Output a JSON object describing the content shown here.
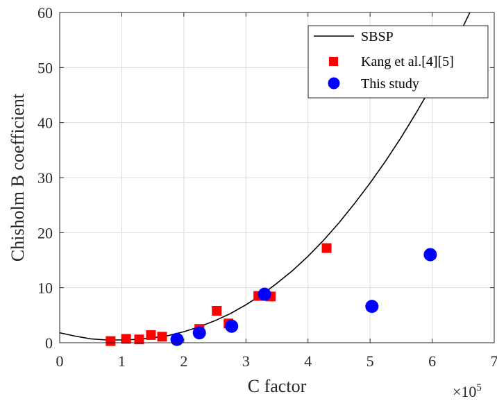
{
  "chart_data": {
    "type": "scatter",
    "xlabel": "C factor",
    "ylabel": "Chisholm B coefficient",
    "x_exponent_label": "×10",
    "x_exponent_power": "5",
    "xlim": [
      0,
      7
    ],
    "ylim": [
      0,
      60
    ],
    "x_ticks": [
      "0",
      "1",
      "2",
      "3",
      "4",
      "5",
      "6",
      "7"
    ],
    "y_ticks": [
      "0",
      "10",
      "20",
      "30",
      "40",
      "50",
      "60"
    ],
    "grid": true,
    "legend_position": "top-right",
    "series": [
      {
        "name": "SBSP",
        "kind": "line",
        "color": "#000000",
        "x": [
          0,
          0.25,
          0.5,
          0.75,
          1.0,
          1.25,
          1.5,
          1.75,
          2.0,
          2.25,
          2.5,
          2.75,
          3.0,
          3.25,
          3.5,
          3.75,
          4.0,
          4.25,
          4.5,
          4.75,
          5.0,
          5.25,
          5.5,
          5.75,
          6.0,
          6.25,
          6.5,
          6.75,
          7.0
        ],
        "y": [
          1.8,
          1.2,
          0.7,
          0.5,
          0.5,
          0.6,
          0.9,
          1.3,
          2.0,
          2.9,
          4.0,
          5.3,
          6.9,
          8.7,
          10.8,
          13.1,
          15.7,
          18.6,
          21.8,
          25.3,
          29.0,
          33.0,
          37.3,
          41.9,
          46.8,
          52.0,
          57.5,
          63.3,
          69.3
        ]
      },
      {
        "name": "Kang et al.[4][5]",
        "kind": "scatter",
        "marker": "square",
        "color": "#ff0000",
        "x": [
          0.82,
          1.07,
          1.28,
          1.47,
          1.65,
          2.25,
          2.53,
          2.72,
          3.2,
          3.4,
          4.3
        ],
        "y": [
          0.3,
          0.7,
          0.6,
          1.4,
          1.1,
          2.5,
          5.8,
          3.5,
          8.5,
          8.4,
          17.2
        ]
      },
      {
        "name": "This study",
        "kind": "scatter",
        "marker": "circle",
        "color": "#0000ff",
        "x": [
          1.89,
          2.25,
          2.77,
          3.3,
          5.03,
          5.97
        ],
        "y": [
          0.6,
          1.8,
          3.0,
          8.8,
          6.6,
          16.0
        ]
      }
    ]
  }
}
